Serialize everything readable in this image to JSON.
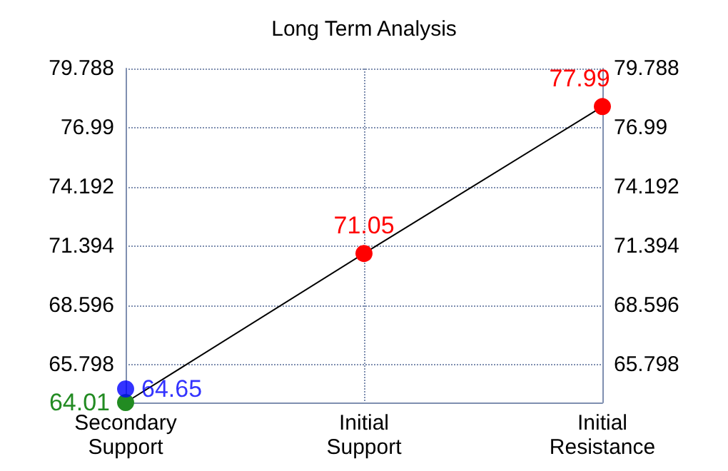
{
  "chart_data": {
    "type": "line",
    "title": "Long Term Analysis",
    "categories": [
      "Secondary\nSupport",
      "Initial\nSupport",
      "Initial\nResistance"
    ],
    "series": [
      {
        "values": [
          64.01,
          71.05,
          77.99
        ],
        "colors": [
          "#228b22",
          "#ff0000",
          "#ff0000"
        ],
        "color": "#000000"
      },
      {
        "type": "scatter",
        "x": [
          "Secondary\nSupport"
        ],
        "values": [
          64.65
        ],
        "color": "#0000ff"
      }
    ],
    "ylim": [
      64.01,
      79.788
    ],
    "yticks": [
      65.798,
      68.596,
      71.394,
      74.192,
      76.99,
      79.788
    ],
    "y2lim": [
      64.01,
      79.788
    ],
    "y2ticks": [
      65.798,
      68.596,
      71.394,
      74.192,
      76.99,
      79.788
    ],
    "data_labels": true,
    "grid": true,
    "marker": "circle",
    "line_style": "solid"
  }
}
